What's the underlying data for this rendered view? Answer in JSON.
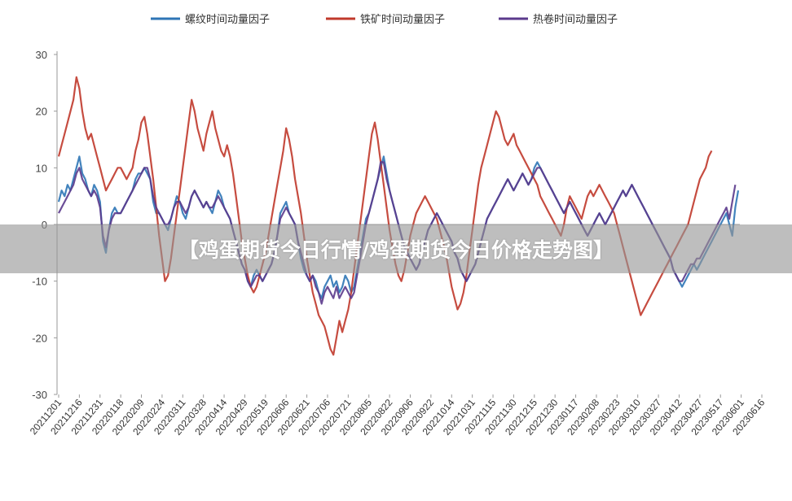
{
  "overlay_title": "【鸡蛋期货今日行情/鸡蛋期货今日价格走势图】",
  "chart_data": {
    "type": "line",
    "title": "",
    "xlabel": "",
    "ylabel": "",
    "ylim": [
      -30,
      30
    ],
    "yticks": [
      30,
      20,
      10,
      0,
      -10,
      -20,
      -30
    ],
    "grid": false,
    "legend_position": "top",
    "x_tick_labels": [
      "20211201",
      "20211216",
      "20211231",
      "20220118",
      "20220209",
      "20220224",
      "20220311",
      "20220328",
      "20220414",
      "20220429",
      "20220519",
      "20220606",
      "20220621",
      "20220706",
      "20220721",
      "20220805",
      "20220822",
      "20220906",
      "20220922",
      "20221014",
      "20221031",
      "20221115",
      "20221130",
      "20221215",
      "20221230",
      "20230117",
      "20230208",
      "20230223",
      "20230310",
      "20230327",
      "20230412",
      "20230427",
      "20230517",
      "20230601",
      "20230616"
    ],
    "x_tick_index": [
      0,
      7,
      14,
      21,
      28,
      35,
      42,
      49,
      56,
      63,
      70,
      77,
      84,
      91,
      98,
      105,
      112,
      119,
      126,
      133,
      140,
      147,
      154,
      161,
      168,
      175,
      182,
      189,
      196,
      203,
      210,
      217,
      224,
      231,
      238
    ],
    "series": [
      {
        "name": "螺纹时间动量因子",
        "color": "#2e75b6",
        "values": [
          4,
          6,
          5,
          7,
          6,
          8,
          10,
          12,
          9,
          8,
          6,
          5,
          7,
          6,
          4,
          -3,
          -5,
          -1,
          2,
          3,
          2,
          2,
          3,
          4,
          5,
          6,
          8,
          9,
          9,
          10,
          9,
          8,
          4,
          2,
          2,
          1,
          0,
          -1,
          1,
          3,
          5,
          4,
          2,
          1,
          3,
          5,
          6,
          5,
          4,
          3,
          4,
          3,
          2,
          4,
          6,
          5,
          3,
          2,
          1,
          -1,
          -3,
          -5,
          -7,
          -8,
          -10,
          -11,
          -9,
          -8,
          -9,
          -10,
          -9,
          -8,
          -7,
          -5,
          -2,
          2,
          3,
          4,
          2,
          1,
          0,
          -3,
          -6,
          -8,
          -9,
          -10,
          -9,
          -10,
          -12,
          -13,
          -11,
          -10,
          -9,
          -11,
          -10,
          -12,
          -11,
          -9,
          -10,
          -12,
          -11,
          -8,
          -5,
          -2,
          1,
          2,
          4,
          6,
          8,
          10,
          12,
          9,
          6,
          4,
          2,
          0,
          -2,
          -4,
          -5,
          -6,
          -7,
          -8,
          -7,
          -5,
          -3,
          -1,
          0,
          1,
          2,
          1,
          0,
          -1,
          -2,
          -3,
          -5,
          -6,
          -8,
          -9,
          -10,
          -9,
          -8,
          -7,
          -5,
          -3,
          -1,
          1,
          2,
          3,
          4,
          5,
          6,
          7,
          8,
          7,
          6,
          7,
          8,
          9,
          8,
          7,
          8,
          10,
          11,
          10,
          9,
          8,
          7,
          6,
          5,
          4,
          3,
          2,
          3,
          4,
          3,
          2,
          1,
          0,
          -1,
          -2,
          -1,
          0,
          1,
          2,
          1,
          0,
          1,
          2,
          3,
          4,
          5,
          6,
          5,
          6,
          7,
          6,
          5,
          4,
          3,
          2,
          1,
          0,
          -1,
          -2,
          -3,
          -4,
          -5,
          -6,
          -8,
          -9,
          -10,
          -11,
          -10,
          -9,
          -8,
          -7,
          -8,
          -7,
          -6,
          -5,
          -4,
          -3,
          -2,
          -1,
          0,
          1,
          2,
          0,
          -2,
          3,
          6
        ]
      },
      {
        "name": "铁矿时间动量因子",
        "color": "#c0392b",
        "values": [
          12,
          14,
          16,
          18,
          20,
          22,
          26,
          24,
          20,
          17,
          15,
          16,
          14,
          12,
          10,
          8,
          6,
          7,
          8,
          9,
          10,
          10,
          9,
          8,
          9,
          10,
          13,
          15,
          18,
          19,
          16,
          12,
          8,
          3,
          -2,
          -6,
          -10,
          -9,
          -6,
          -2,
          2,
          6,
          10,
          14,
          18,
          22,
          20,
          17,
          15,
          13,
          16,
          18,
          20,
          17,
          15,
          13,
          12,
          14,
          12,
          9,
          5,
          1,
          -3,
          -6,
          -9,
          -11,
          -12,
          -11,
          -9,
          -7,
          -5,
          -2,
          1,
          4,
          7,
          10,
          13,
          17,
          15,
          12,
          8,
          5,
          2,
          -2,
          -6,
          -9,
          -12,
          -14,
          -16,
          -17,
          -18,
          -20,
          -22,
          -23,
          -20,
          -17,
          -19,
          -17,
          -15,
          -12,
          -8,
          -4,
          0,
          4,
          8,
          12,
          16,
          18,
          15,
          11,
          7,
          3,
          -1,
          -4,
          -7,
          -9,
          -10,
          -8,
          -5,
          -2,
          0,
          2,
          3,
          4,
          5,
          4,
          3,
          2,
          1,
          -1,
          -3,
          -5,
          -8,
          -11,
          -13,
          -15,
          -14,
          -12,
          -9,
          -5,
          -1,
          3,
          7,
          10,
          12,
          14,
          16,
          18,
          20,
          19,
          17,
          15,
          14,
          15,
          16,
          14,
          13,
          12,
          11,
          10,
          9,
          8,
          7,
          5,
          4,
          3,
          2,
          1,
          0,
          -1,
          -2,
          0,
          3,
          5,
          4,
          3,
          2,
          1,
          3,
          5,
          6,
          5,
          6,
          7,
          6,
          5,
          4,
          3,
          2,
          0,
          -2,
          -4,
          -6,
          -8,
          -10,
          -12,
          -14,
          -16,
          -15,
          -14,
          -13,
          -12,
          -11,
          -10,
          -9,
          -8,
          -7,
          -6,
          -5,
          -4,
          -3,
          -2,
          -1,
          0,
          2,
          4,
          6,
          8,
          9,
          10,
          12,
          13
        ]
      },
      {
        "name": "热卷时间动量因子",
        "color": "#5b3a8c",
        "values": [
          2,
          3,
          4,
          5,
          6,
          7,
          9,
          10,
          8,
          7,
          6,
          5,
          6,
          5,
          3,
          -2,
          -4,
          -1,
          1,
          2,
          2,
          2,
          3,
          4,
          5,
          6,
          7,
          8,
          9,
          10,
          10,
          8,
          5,
          3,
          2,
          1,
          0,
          0,
          1,
          3,
          4,
          4,
          3,
          2,
          3,
          5,
          6,
          5,
          4,
          3,
          4,
          3,
          3,
          4,
          5,
          4,
          3,
          2,
          1,
          -1,
          -3,
          -5,
          -7,
          -8,
          -10,
          -11,
          -10,
          -9,
          -9,
          -10,
          -9,
          -8,
          -7,
          -5,
          -2,
          1,
          2,
          3,
          2,
          1,
          0,
          -3,
          -5,
          -7,
          -9,
          -10,
          -9,
          -11,
          -12,
          -14,
          -12,
          -11,
          -12,
          -13,
          -11,
          -13,
          -12,
          -11,
          -12,
          -13,
          -12,
          -9,
          -6,
          -3,
          0,
          2,
          4,
          6,
          8,
          11,
          11,
          8,
          6,
          4,
          2,
          0,
          -2,
          -4,
          -5,
          -6,
          -7,
          -8,
          -7,
          -5,
          -3,
          -1,
          0,
          1,
          2,
          1,
          0,
          -1,
          -2,
          -3,
          -5,
          -6,
          -8,
          -9,
          -10,
          -9,
          -8,
          -7,
          -5,
          -3,
          -1,
          1,
          2,
          3,
          4,
          5,
          6,
          7,
          8,
          7,
          6,
          7,
          8,
          9,
          8,
          7,
          8,
          9,
          10,
          10,
          9,
          8,
          7,
          6,
          5,
          4,
          3,
          2,
          3,
          4,
          3,
          2,
          1,
          0,
          -1,
          -2,
          -1,
          0,
          1,
          2,
          1,
          0,
          1,
          2,
          3,
          4,
          5,
          6,
          5,
          6,
          7,
          6,
          5,
          4,
          3,
          2,
          1,
          0,
          -1,
          -2,
          -3,
          -4,
          -5,
          -6,
          -8,
          -9,
          -10,
          -10,
          -9,
          -8,
          -7,
          -7,
          -6,
          -6,
          -5,
          -4,
          -3,
          -2,
          -1,
          0,
          1,
          2,
          3,
          1,
          4,
          7
        ]
      }
    ]
  }
}
